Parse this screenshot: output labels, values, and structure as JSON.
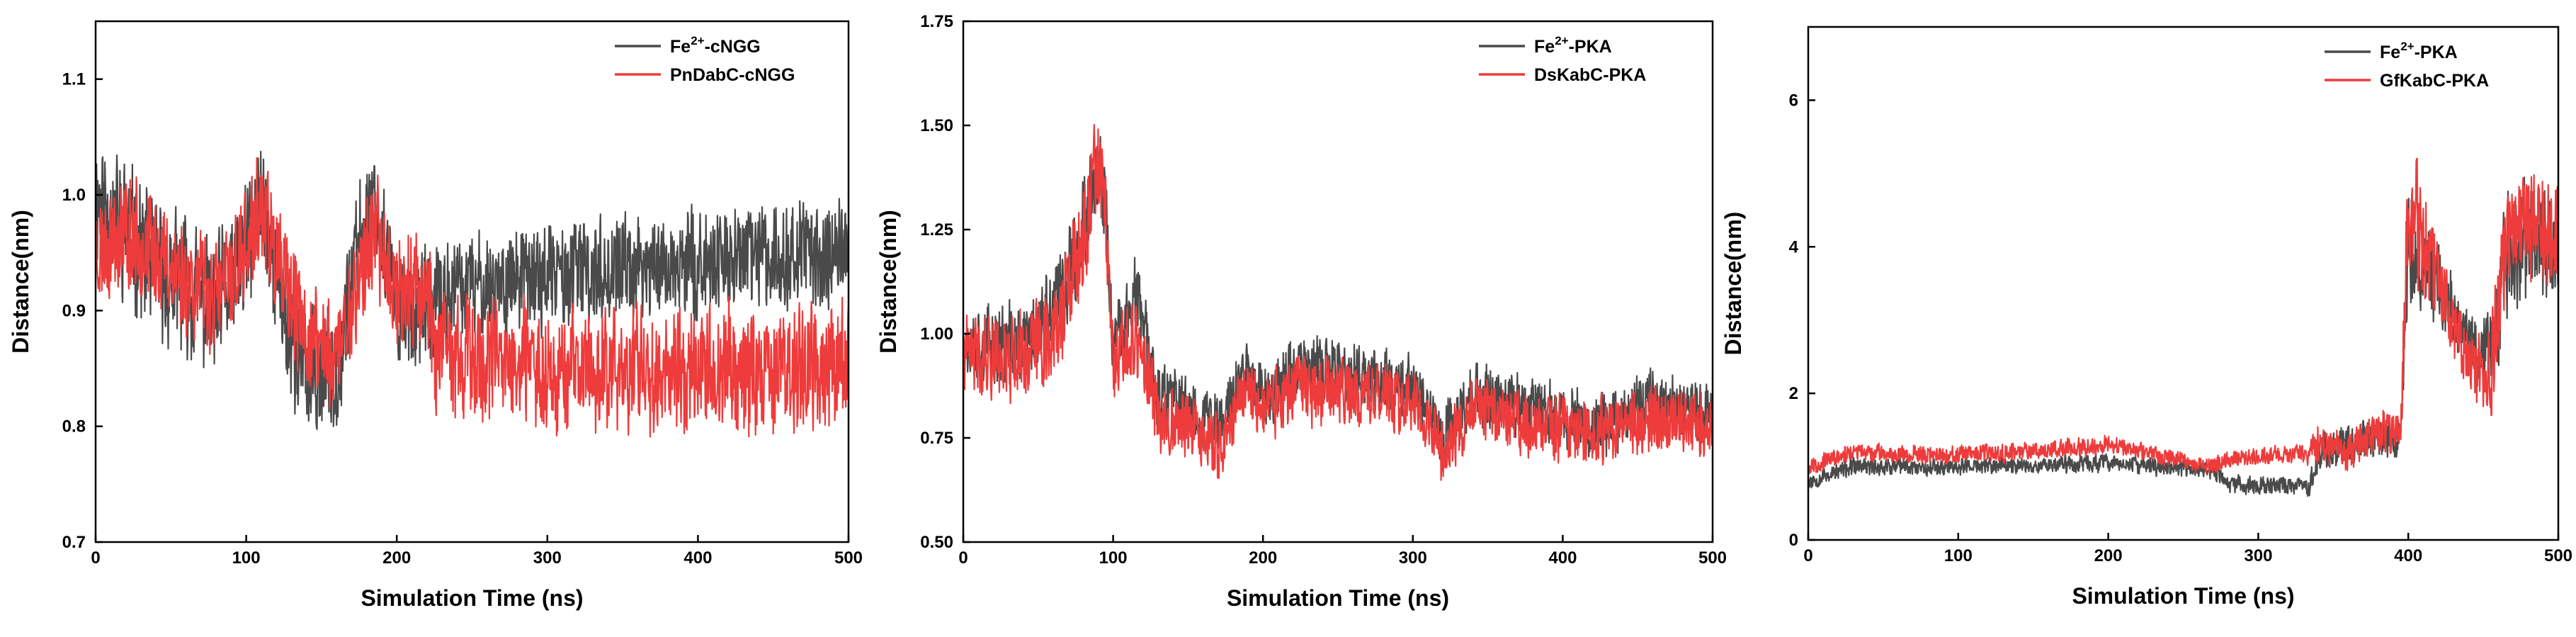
{
  "chart_data": [
    {
      "type": "line",
      "xlabel": "Simulation Time (ns)",
      "ylabel": "Distance(nm)",
      "xlim": [
        0,
        500
      ],
      "ylim": [
        0.7,
        1.15
      ],
      "xticks": [
        0,
        100,
        200,
        300,
        400,
        500
      ],
      "xtick_labels": [
        "0",
        "100",
        "200",
        "300",
        "400",
        "500"
      ],
      "yticks": [
        0.7,
        0.8,
        0.9,
        1.0,
        1.1
      ],
      "ytick_labels": [
        "0.7",
        "0.8",
        "0.9",
        "1.0",
        "1.1"
      ],
      "legend_position": "top-right",
      "series": [
        {
          "name": "Fe2+-cNGG",
          "name_parts": {
            "base": "Fe",
            "sup": "2+",
            "rest": "-cNGG"
          },
          "color": "#4a4a4a",
          "center": [
            [
              0,
              1.0
            ],
            [
              20,
              0.97
            ],
            [
              45,
              0.93
            ],
            [
              60,
              0.92
            ],
            [
              80,
              0.9
            ],
            [
              100,
              0.95
            ],
            [
              110,
              1.0
            ],
            [
              125,
              0.9
            ],
            [
              140,
              0.84
            ],
            [
              160,
              0.85
            ],
            [
              175,
              0.96
            ],
            [
              185,
              1.0
            ],
            [
              200,
              0.9
            ],
            [
              215,
              0.9
            ],
            [
              222,
              0.9
            ],
            [
              240,
              0.92
            ],
            [
              300,
              0.93
            ],
            [
              350,
              0.935
            ],
            [
              400,
              0.94
            ],
            [
              450,
              0.95
            ],
            [
              500,
              0.95
            ]
          ],
          "amp": [
            [
              0,
              0.06
            ],
            [
              100,
              0.06
            ],
            [
              200,
              0.05
            ],
            [
              222,
              0.05
            ],
            [
              240,
              0.045
            ],
            [
              500,
              0.045
            ]
          ],
          "seed": 11
        },
        {
          "name": "PnDabC-cNGG",
          "name_parts": {
            "base": "PnDabC-cNGG",
            "sup": "",
            "rest": ""
          },
          "color": "#ee3b3b",
          "center": [
            [
              0,
              0.95
            ],
            [
              20,
              0.97
            ],
            [
              40,
              0.95
            ],
            [
              60,
              0.93
            ],
            [
              80,
              0.91
            ],
            [
              100,
              0.95
            ],
            [
              110,
              0.99
            ],
            [
              125,
              0.92
            ],
            [
              140,
              0.88
            ],
            [
              160,
              0.86
            ],
            [
              175,
              0.93
            ],
            [
              185,
              0.97
            ],
            [
              200,
              0.92
            ],
            [
              215,
              0.92
            ],
            [
              222,
              0.92
            ],
            [
              226,
              0.86
            ],
            [
              300,
              0.85
            ],
            [
              400,
              0.85
            ],
            [
              500,
              0.85
            ]
          ],
          "amp": [
            [
              0,
              0.05
            ],
            [
              220,
              0.05
            ],
            [
              226,
              0.055
            ],
            [
              500,
              0.055
            ]
          ],
          "seed": 23
        }
      ]
    },
    {
      "type": "line",
      "xlabel": "Simulation Time (ns)",
      "ylabel": "Distance(nm)",
      "xlim": [
        0,
        500
      ],
      "ylim": [
        0.5,
        1.75
      ],
      "xticks": [
        0,
        100,
        200,
        300,
        400,
        500
      ],
      "xtick_labels": [
        "0",
        "100",
        "200",
        "300",
        "400",
        "500"
      ],
      "yticks": [
        0.5,
        0.75,
        1.0,
        1.25,
        1.5,
        1.75
      ],
      "ytick_labels": [
        "0.50",
        "0.75",
        "1.00",
        "1.25",
        "1.50",
        "1.75"
      ],
      "legend_position": "top-right",
      "series": [
        {
          "name": "Fe2+-PKA",
          "name_parts": {
            "base": "Fe",
            "sup": "2+",
            "rest": "-PKA"
          },
          "color": "#4a4a4a",
          "center": [
            [
              0,
              0.98
            ],
            [
              40,
              0.97
            ],
            [
              60,
              1.05
            ],
            [
              80,
              1.25
            ],
            [
              88,
              1.4
            ],
            [
              95,
              1.3
            ],
            [
              100,
              0.95
            ],
            [
              115,
              1.1
            ],
            [
              130,
              0.85
            ],
            [
              150,
              0.82
            ],
            [
              170,
              0.78
            ],
            [
              190,
              0.92
            ],
            [
              200,
              0.85
            ],
            [
              220,
              0.92
            ],
            [
              260,
              0.9
            ],
            [
              300,
              0.88
            ],
            [
              320,
              0.75
            ],
            [
              340,
              0.85
            ],
            [
              380,
              0.82
            ],
            [
              420,
              0.78
            ],
            [
              460,
              0.84
            ],
            [
              500,
              0.8
            ]
          ],
          "amp": [
            [
              0,
              0.09
            ],
            [
              80,
              0.12
            ],
            [
              100,
              0.1
            ],
            [
              140,
              0.08
            ],
            [
              500,
              0.08
            ]
          ],
          "seed": 37
        },
        {
          "name": "DsKabC-PKA",
          "name_parts": {
            "base": "DsKabC-PKA",
            "sup": "",
            "rest": ""
          },
          "color": "#ee3b3b",
          "center": [
            [
              0,
              0.95
            ],
            [
              40,
              0.95
            ],
            [
              60,
              1.0
            ],
            [
              80,
              1.2
            ],
            [
              88,
              1.4
            ],
            [
              95,
              1.3
            ],
            [
              100,
              0.9
            ],
            [
              115,
              1.0
            ],
            [
              130,
              0.8
            ],
            [
              150,
              0.78
            ],
            [
              170,
              0.72
            ],
            [
              190,
              0.88
            ],
            [
              200,
              0.82
            ],
            [
              220,
              0.86
            ],
            [
              260,
              0.86
            ],
            [
              300,
              0.84
            ],
            [
              320,
              0.72
            ],
            [
              340,
              0.82
            ],
            [
              380,
              0.78
            ],
            [
              420,
              0.76
            ],
            [
              460,
              0.8
            ],
            [
              500,
              0.78
            ]
          ],
          "amp": [
            [
              0,
              0.09
            ],
            [
              80,
              0.14
            ],
            [
              100,
              0.1
            ],
            [
              140,
              0.08
            ],
            [
              500,
              0.08
            ]
          ],
          "seed": 41
        }
      ]
    },
    {
      "type": "line",
      "xlabel": "Simulation Time (ns)",
      "ylabel": "Distance(nm)",
      "xlim": [
        0,
        500
      ],
      "ylim": [
        0,
        7
      ],
      "xticks": [
        0,
        100,
        200,
        300,
        400,
        500
      ],
      "xtick_labels": [
        "0",
        "100",
        "200",
        "300",
        "400",
        "500"
      ],
      "yticks": [
        0,
        2,
        4,
        6
      ],
      "ytick_labels": [
        "0",
        "2",
        "4",
        "6"
      ],
      "legend_position": "top-right",
      "series": [
        {
          "name": "Fe2+-PKA",
          "name_parts": {
            "base": "Fe",
            "sup": "2+",
            "rest": "-PKA"
          },
          "color": "#4a4a4a",
          "center": [
            [
              0,
              0.8
            ],
            [
              30,
              1.0
            ],
            [
              100,
              1.0
            ],
            [
              200,
              1.05
            ],
            [
              270,
              0.95
            ],
            [
              280,
              0.75
            ],
            [
              335,
              0.75
            ],
            [
              340,
              1.2
            ],
            [
              360,
              1.3
            ],
            [
              380,
              1.4
            ],
            [
              395,
              1.4
            ],
            [
              400,
              4.0
            ],
            [
              420,
              3.5
            ],
            [
              440,
              2.7
            ],
            [
              455,
              2.5
            ],
            [
              465,
              3.8
            ],
            [
              480,
              4.2
            ],
            [
              500,
              4.0
            ]
          ],
          "amp": [
            [
              0,
              0.12
            ],
            [
              330,
              0.12
            ],
            [
              340,
              0.25
            ],
            [
              395,
              0.3
            ],
            [
              400,
              0.8
            ],
            [
              440,
              0.4
            ],
            [
              460,
              0.8
            ],
            [
              500,
              0.9
            ]
          ],
          "seed": 53
        },
        {
          "name": "GfKabC-PKA",
          "name_parts": {
            "base": "GfKabC-PKA",
            "sup": "",
            "rest": ""
          },
          "color": "#ee3b3b",
          "center": [
            [
              0,
              1.0
            ],
            [
              30,
              1.2
            ],
            [
              100,
              1.15
            ],
            [
              200,
              1.3
            ],
            [
              270,
              1.0
            ],
            [
              280,
              1.1
            ],
            [
              335,
              1.2
            ],
            [
              340,
              1.3
            ],
            [
              360,
              1.2
            ],
            [
              380,
              1.5
            ],
            [
              395,
              1.5
            ],
            [
              400,
              4.5
            ],
            [
              420,
              3.6
            ],
            [
              440,
              2.4
            ],
            [
              455,
              2.2
            ],
            [
              465,
              4.0
            ],
            [
              480,
              4.4
            ],
            [
              500,
              4.2
            ]
          ],
          "amp": [
            [
              0,
              0.12
            ],
            [
              330,
              0.12
            ],
            [
              340,
              0.25
            ],
            [
              395,
              0.3
            ],
            [
              400,
              0.9
            ],
            [
              440,
              0.4
            ],
            [
              460,
              0.8
            ],
            [
              500,
              0.9
            ]
          ],
          "seed": 67
        }
      ]
    }
  ]
}
